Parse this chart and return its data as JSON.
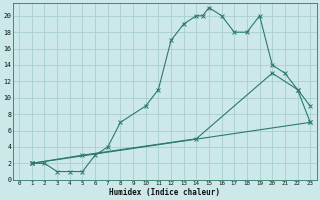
{
  "xlabel": "Humidex (Indice chaleur)",
  "bg_color": "#cde8e8",
  "grid_color": "#a8cece",
  "line_color": "#2a7a6a",
  "xlim": [
    -0.5,
    23.5
  ],
  "ylim": [
    0,
    21.5
  ],
  "xticks": [
    0,
    1,
    2,
    3,
    4,
    5,
    6,
    7,
    8,
    9,
    10,
    11,
    12,
    13,
    14,
    15,
    16,
    17,
    18,
    19,
    20,
    21,
    22,
    23
  ],
  "yticks": [
    0,
    2,
    4,
    6,
    8,
    10,
    12,
    14,
    16,
    18,
    20
  ],
  "line1_x": [
    1,
    2,
    3,
    4,
    5,
    6,
    7,
    8,
    10,
    11,
    12,
    13,
    14,
    14.5,
    15,
    16,
    17,
    18,
    19,
    20,
    21,
    22,
    23
  ],
  "line1_y": [
    2,
    2,
    1,
    1,
    1,
    3,
    4,
    7,
    9,
    11,
    17,
    19,
    20,
    20,
    21,
    20,
    18,
    18,
    20,
    14,
    13,
    11,
    7
  ],
  "line2_x": [
    1,
    23
  ],
  "line2_y": [
    2,
    7
  ],
  "line3_x": [
    1,
    5,
    14,
    20,
    22,
    23
  ],
  "line3_y": [
    2,
    3,
    5,
    13,
    11,
    9
  ]
}
